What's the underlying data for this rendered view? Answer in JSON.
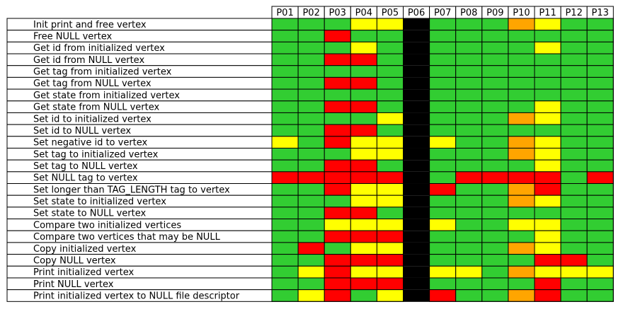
{
  "chart_data": {
    "type": "heatmap",
    "title": "",
    "columns": [
      "P01",
      "P02",
      "P03",
      "P04",
      "P05",
      "P06",
      "P07",
      "P08",
      "P09",
      "P10",
      "P11",
      "P12",
      "P13"
    ],
    "rows": [
      "Init print and free vertex",
      "Free NULL vertex",
      "Get id from initialized vertex",
      "Get id from NULL vertex",
      "Get tag from initialized vertex",
      "Get tag from NULL vertex",
      "Get state from initialized vertex",
      "Get state from NULL vertex",
      "Set id to initialized vertex",
      "Set id to NULL vertex",
      "Set negative id to vertex",
      "Set tag to initialized vertex",
      "Set tag to NULL vertex",
      "Set NULL tag to vertex",
      "Set longer than TAG_LENGTH tag to vertex",
      "Set state to initialized vertex",
      "Set state to NULL vertex",
      "Compare two initialized vertices",
      "Compare two vertices that may be NULL",
      "Copy initialized vertex",
      "Copy NULL vertex",
      "Print initialized vertex",
      "Print NULL vertex",
      "Print initialized vertex to NULL file descriptor"
    ],
    "legend": {
      "G": "green",
      "Y": "yellow",
      "R": "red",
      "O": "orange",
      "K": "black"
    },
    "colors": {
      "G": "#32cd32",
      "Y": "#ffff00",
      "R": "#ff0000",
      "O": "#ffa500",
      "K": "#000000"
    },
    "cells": [
      [
        "G",
        "G",
        "G",
        "Y",
        "Y",
        "K",
        "G",
        "G",
        "G",
        "O",
        "Y",
        "G",
        "G"
      ],
      [
        "G",
        "G",
        "R",
        "G",
        "G",
        "K",
        "G",
        "G",
        "G",
        "G",
        "G",
        "G",
        "G"
      ],
      [
        "G",
        "G",
        "G",
        "Y",
        "G",
        "K",
        "G",
        "G",
        "G",
        "G",
        "Y",
        "G",
        "G"
      ],
      [
        "G",
        "G",
        "R",
        "R",
        "G",
        "K",
        "G",
        "G",
        "G",
        "G",
        "G",
        "G",
        "G"
      ],
      [
        "G",
        "G",
        "G",
        "G",
        "G",
        "K",
        "G",
        "G",
        "G",
        "G",
        "G",
        "G",
        "G"
      ],
      [
        "G",
        "G",
        "R",
        "R",
        "G",
        "K",
        "G",
        "G",
        "G",
        "G",
        "G",
        "G",
        "G"
      ],
      [
        "G",
        "G",
        "G",
        "G",
        "G",
        "K",
        "G",
        "G",
        "G",
        "G",
        "G",
        "G",
        "G"
      ],
      [
        "G",
        "G",
        "R",
        "R",
        "G",
        "K",
        "G",
        "G",
        "G",
        "G",
        "Y",
        "G",
        "G"
      ],
      [
        "G",
        "G",
        "G",
        "G",
        "Y",
        "K",
        "G",
        "G",
        "G",
        "O",
        "Y",
        "G",
        "G"
      ],
      [
        "G",
        "G",
        "R",
        "R",
        "G",
        "K",
        "G",
        "G",
        "G",
        "G",
        "G",
        "G",
        "G"
      ],
      [
        "Y",
        "G",
        "R",
        "Y",
        "Y",
        "K",
        "Y",
        "G",
        "G",
        "O",
        "Y",
        "G",
        "G"
      ],
      [
        "G",
        "G",
        "G",
        "Y",
        "Y",
        "K",
        "G",
        "G",
        "G",
        "O",
        "Y",
        "G",
        "G"
      ],
      [
        "G",
        "G",
        "R",
        "R",
        "G",
        "K",
        "G",
        "G",
        "G",
        "G",
        "Y",
        "G",
        "G"
      ],
      [
        "R",
        "R",
        "R",
        "R",
        "R",
        "K",
        "G",
        "R",
        "R",
        "R",
        "R",
        "G",
        "R"
      ],
      [
        "G",
        "G",
        "R",
        "Y",
        "Y",
        "K",
        "R",
        "G",
        "G",
        "O",
        "R",
        "G",
        "G"
      ],
      [
        "G",
        "G",
        "G",
        "Y",
        "Y",
        "K",
        "G",
        "G",
        "G",
        "O",
        "Y",
        "G",
        "G"
      ],
      [
        "G",
        "G",
        "R",
        "R",
        "G",
        "K",
        "G",
        "G",
        "G",
        "G",
        "G",
        "G",
        "G"
      ],
      [
        "G",
        "G",
        "Y",
        "Y",
        "Y",
        "K",
        "Y",
        "G",
        "G",
        "Y",
        "Y",
        "G",
        "G"
      ],
      [
        "G",
        "G",
        "R",
        "R",
        "R",
        "K",
        "G",
        "G",
        "G",
        "G",
        "Y",
        "G",
        "G"
      ],
      [
        "G",
        "R",
        "G",
        "Y",
        "Y",
        "K",
        "G",
        "G",
        "G",
        "O",
        "Y",
        "G",
        "G"
      ],
      [
        "G",
        "G",
        "R",
        "R",
        "R",
        "K",
        "G",
        "G",
        "G",
        "G",
        "R",
        "R",
        "G"
      ],
      [
        "G",
        "Y",
        "R",
        "Y",
        "Y",
        "K",
        "Y",
        "Y",
        "G",
        "O",
        "Y",
        "Y",
        "Y"
      ],
      [
        "G",
        "G",
        "R",
        "R",
        "R",
        "K",
        "G",
        "G",
        "G",
        "G",
        "R",
        "G",
        "G"
      ],
      [
        "G",
        "Y",
        "R",
        "G",
        "Y",
        "K",
        "R",
        "G",
        "G",
        "O",
        "R",
        "G",
        "G"
      ]
    ]
  }
}
